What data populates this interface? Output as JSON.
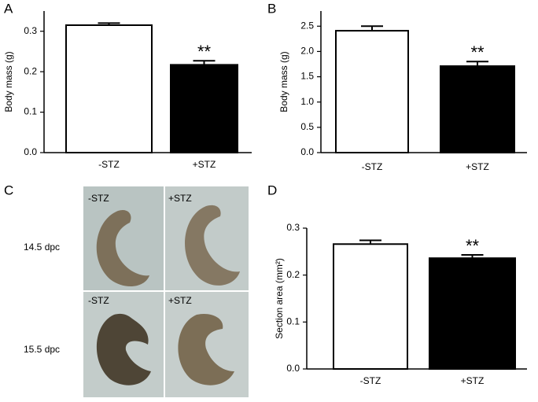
{
  "chart_data": [
    {
      "type": "bar",
      "panel": "A",
      "ylabel": "Body mass (g)",
      "categories": [
        "-STZ",
        "+STZ"
      ],
      "values": [
        0.315,
        0.217
      ],
      "errors": [
        0.005,
        0.01
      ],
      "colors": [
        "#ffffff",
        "#000000"
      ],
      "annotation": "**",
      "ylim": [
        0,
        0.35
      ],
      "yticks": [
        {
          "value": 0,
          "label": "0.0"
        },
        0.1,
        0.2,
        0.3
      ]
    },
    {
      "type": "bar",
      "panel": "B",
      "ylabel": "Body mass (g)",
      "categories": [
        "-STZ",
        "+STZ"
      ],
      "values": [
        2.41,
        1.71
      ],
      "errors": [
        0.09,
        0.09
      ],
      "colors": [
        "#ffffff",
        "#000000"
      ],
      "annotation": "**",
      "ylim": [
        0,
        2.8
      ],
      "yticks": [
        {
          "value": 0,
          "label": "0.0"
        },
        0.5,
        {
          "value": 1,
          "label": "1.0"
        },
        1.5,
        {
          "value": 2,
          "label": "2.0"
        },
        2.5
      ]
    },
    {
      "type": "bar",
      "panel": "D",
      "ylabel": "Section area (mm²)",
      "categories": [
        "-STZ",
        "+STZ"
      ],
      "values": [
        0.266,
        0.236
      ],
      "errors": [
        0.008,
        0.007
      ],
      "colors": [
        "#ffffff",
        "#000000"
      ],
      "annotation": "**",
      "ylim": [
        0,
        0.3
      ],
      "yticks": [
        {
          "value": 0,
          "label": "0.0"
        },
        0.1,
        0.2,
        0.3
      ]
    }
  ],
  "panel_c": {
    "panel": "C",
    "rows": [
      "14.5 dpc",
      "15.5 dpc"
    ],
    "images": [
      [
        "-STZ",
        "+STZ"
      ],
      [
        "-STZ",
        "+STZ"
      ]
    ]
  }
}
